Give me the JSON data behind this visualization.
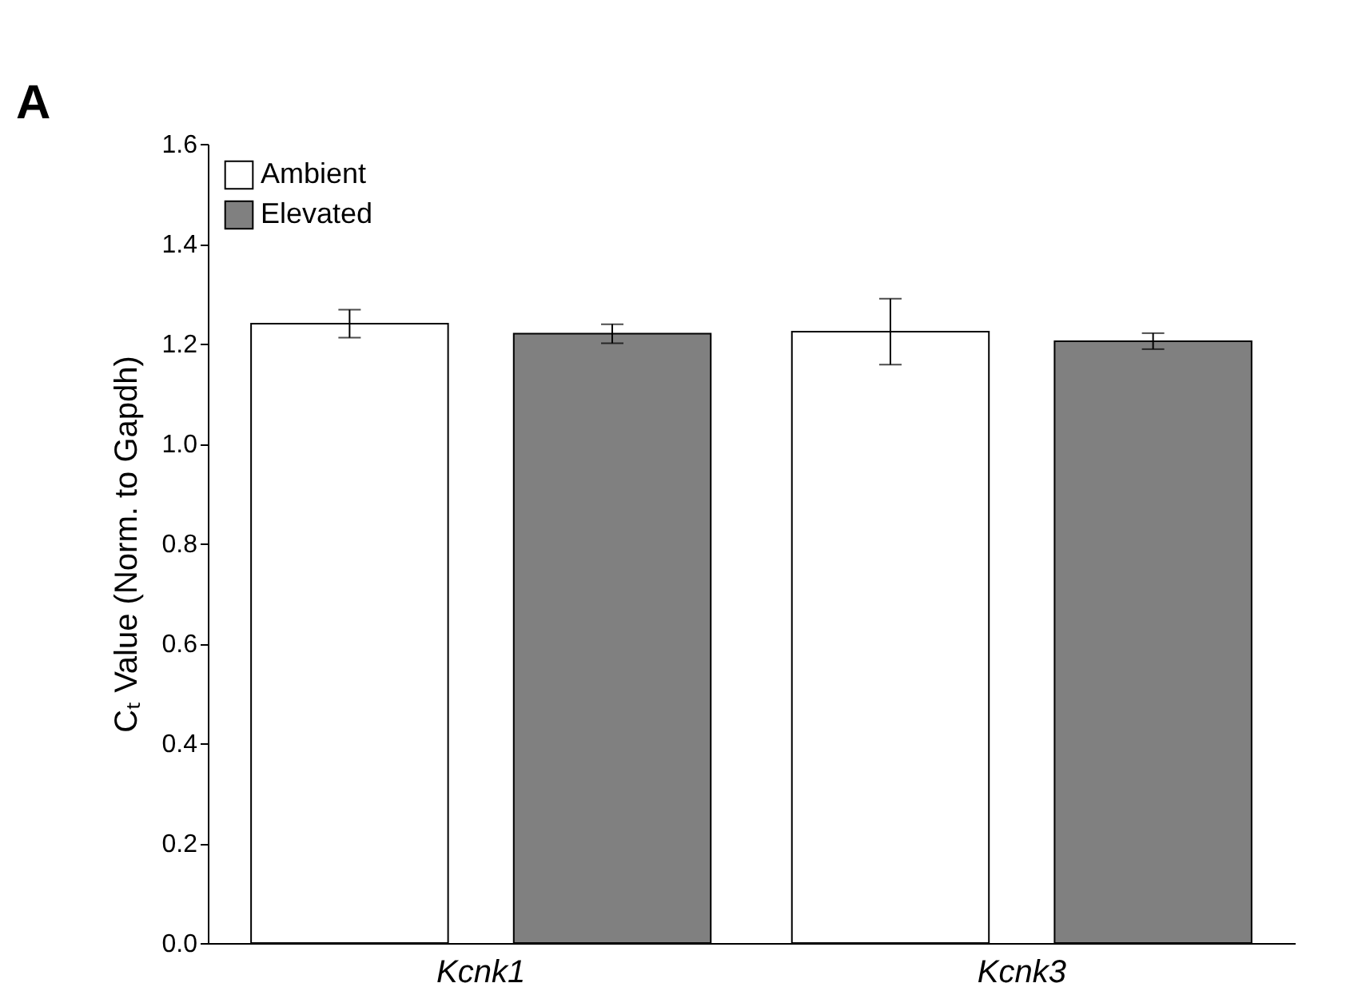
{
  "chart_data": {
    "type": "bar",
    "categories": [
      "Kcnk1",
      "Kcnk3"
    ],
    "ylabel": "Cₜ Value (Norm. to Gapdh)",
    "series": [
      {
        "name": "Ambient",
        "color": "#ffffff",
        "values": [
          1.24,
          1.224
        ],
        "errors": [
          0.028,
          0.066
        ]
      },
      {
        "name": "Elevated",
        "color": "#808080",
        "values": [
          1.22,
          1.205
        ],
        "errors": [
          0.019,
          0.016
        ]
      }
    ],
    "ylim": [
      0,
      1.6
    ],
    "yticks": [
      {
        "value": 0,
        "label": "0.0"
      },
      0.2,
      0.4,
      0.6,
      0.8,
      {
        "value": 1,
        "label": "1.0"
      },
      1.2,
      1.4,
      1.6
    ],
    "grid": false,
    "legend": "top left",
    "annotations": [
      "A"
    ]
  }
}
